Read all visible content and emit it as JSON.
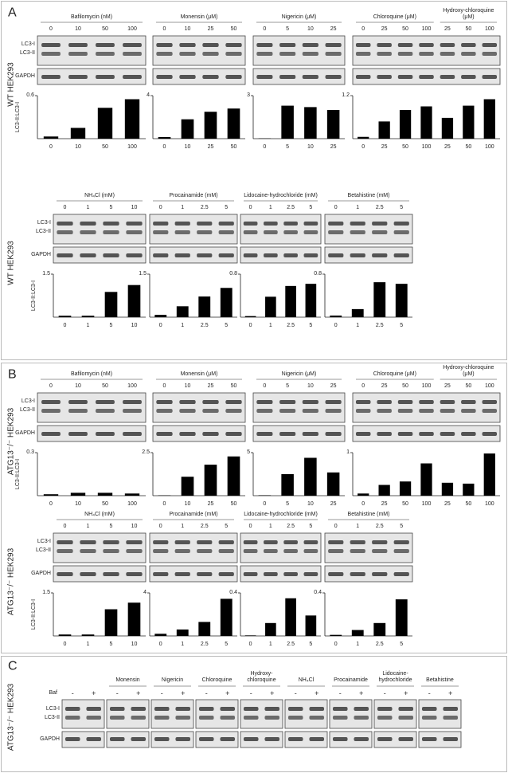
{
  "panel_letters": [
    "A",
    "B",
    "C"
  ],
  "blot_labels": [
    "LC3-I",
    "LC3-II",
    "GAPDH"
  ],
  "rows": [
    {
      "cell_line": "WT HEK293",
      "y_label": "LC3-II:LC3-I"
    },
    {
      "cell_line": "WT HEK293",
      "y_label": "LC3-II:LC3-I"
    },
    {
      "cell_line": "ATG13⁻/⁻ HEK293",
      "y_label": "LC3-II:LC3-I"
    },
    {
      "cell_line": "ATG13⁻/⁻ HEK293",
      "y_label": "LC3-II:LC3-I"
    }
  ],
  "chart_data": [
    {
      "type": "bar",
      "title": "Bafilomycin (nM)",
      "categories": [
        "0",
        "10",
        "50",
        "100"
      ],
      "values": [
        0.03,
        0.15,
        0.43,
        0.55
      ],
      "ylim": [
        0,
        0.6
      ],
      "yticks": [
        0.6
      ],
      "color": "#000000"
    },
    {
      "type": "bar",
      "title": "Monensin (μM)",
      "categories": [
        "0",
        "10",
        "25",
        "50"
      ],
      "values": [
        0.15,
        1.8,
        2.5,
        2.8
      ],
      "ylim": [
        0,
        4
      ],
      "yticks": [
        4
      ],
      "color": "#000000"
    },
    {
      "type": "bar",
      "title": "Nigericin (μM)",
      "categories": [
        "0",
        "5",
        "10",
        "25"
      ],
      "values": [
        0.02,
        2.3,
        2.2,
        2.0
      ],
      "ylim": [
        0,
        3
      ],
      "yticks": [
        3
      ],
      "color": "#000000"
    },
    {
      "type": "bar",
      "group_titles": [
        "Chloroquine (μM)",
        "Hydroxy-chloroquine (μM)"
      ],
      "categories": [
        "0",
        "25",
        "50",
        "100",
        "25",
        "50",
        "100"
      ],
      "values": [
        0.05,
        0.48,
        0.8,
        0.9,
        0.58,
        0.92,
        1.1
      ],
      "ylim": [
        0,
        1.2
      ],
      "yticks": [
        1.2
      ],
      "color": "#000000"
    },
    {
      "type": "bar",
      "title": "NH₄Cl (mM)",
      "categories": [
        "0",
        "1",
        "5",
        "10"
      ],
      "values": [
        0.05,
        0.05,
        0.88,
        1.12
      ],
      "ylim": [
        0,
        1.5
      ],
      "yticks": [
        1.5
      ],
      "color": "#000000"
    },
    {
      "type": "bar",
      "title": "Procainamide (mM)",
      "categories": [
        "0",
        "1",
        "2.5",
        "5"
      ],
      "values": [
        0.08,
        0.38,
        0.72,
        1.02
      ],
      "ylim": [
        0,
        1.5
      ],
      "yticks": [
        1.5
      ],
      "color": "#000000"
    },
    {
      "type": "bar",
      "title": "Lidocaine-hydrochloride (mM)",
      "categories": [
        "0",
        "1",
        "2.5",
        "5"
      ],
      "values": [
        0.02,
        0.38,
        0.58,
        0.62
      ],
      "ylim": [
        0,
        0.8
      ],
      "yticks": [
        0.8
      ],
      "color": "#000000"
    },
    {
      "type": "bar",
      "title": "Betahistine (mM)",
      "categories": [
        "0",
        "1",
        "2.5",
        "5"
      ],
      "values": [
        0.03,
        0.15,
        0.65,
        0.62
      ],
      "ylim": [
        0,
        0.8
      ],
      "yticks": [
        0.8
      ],
      "color": "#000000"
    },
    {
      "type": "bar",
      "title": "Bafilomycin (nM)",
      "categories": [
        "0",
        "10",
        "50",
        "100"
      ],
      "values": [
        0.01,
        0.02,
        0.02,
        0.015
      ],
      "ylim": [
        0,
        0.3
      ],
      "yticks": [
        0.3
      ],
      "color": "#000000"
    },
    {
      "type": "bar",
      "title": "Monensin (μM)",
      "categories": [
        "0",
        "10",
        "25",
        "50"
      ],
      "values": [
        0.02,
        1.1,
        1.8,
        2.28
      ],
      "ylim": [
        0,
        2.5
      ],
      "yticks": [
        2.5
      ],
      "color": "#000000"
    },
    {
      "type": "bar",
      "title": "Nigericin (μM)",
      "categories": [
        "0",
        "5",
        "10",
        "25"
      ],
      "values": [
        0.05,
        2.5,
        4.4,
        2.7
      ],
      "ylim": [
        0,
        5
      ],
      "yticks": [
        5
      ],
      "color": "#000000"
    },
    {
      "type": "bar",
      "group_titles": [
        "Chloroquine (μM)",
        "Hydroxy-chloroquine (μM)"
      ],
      "categories": [
        "0",
        "25",
        "50",
        "100",
        "25",
        "50",
        "100"
      ],
      "values": [
        0.05,
        0.25,
        0.33,
        0.75,
        0.3,
        0.28,
        0.98
      ],
      "ylim": [
        0,
        1
      ],
      "yticks": [
        1
      ],
      "color": "#000000"
    },
    {
      "type": "bar",
      "title": "NH₄Cl (mM)",
      "categories": [
        "0",
        "1",
        "5",
        "10"
      ],
      "values": [
        0.05,
        0.05,
        0.93,
        1.16
      ],
      "ylim": [
        0,
        1.5
      ],
      "yticks": [
        1.5
      ],
      "color": "#000000"
    },
    {
      "type": "bar",
      "title": "Procainamide (mM)",
      "categories": [
        "0",
        "1",
        "2.5",
        "5"
      ],
      "values": [
        0.2,
        0.6,
        1.3,
        3.45
      ],
      "ylim": [
        0,
        4
      ],
      "yticks": [
        4
      ],
      "color": "#000000"
    },
    {
      "type": "bar",
      "title": "Lidocaine-hydrochloride (mM)",
      "categories": [
        "0",
        "1",
        "2.5",
        "5"
      ],
      "values": [
        0.005,
        0.12,
        0.35,
        0.19
      ],
      "ylim": [
        0,
        0.4
      ],
      "yticks": [
        0.4
      ],
      "color": "#000000"
    },
    {
      "type": "bar",
      "title": "Betahistine (mM)",
      "categories": [
        "0",
        "1",
        "2.5",
        "5"
      ],
      "values": [
        0.01,
        0.055,
        0.12,
        0.34
      ],
      "ylim": [
        0,
        0.4
      ],
      "yticks": [
        0.4
      ],
      "color": "#000000"
    }
  ],
  "panel_c": {
    "cell_line": "ATG13⁻/⁻ HEK293",
    "row_label": "Baf",
    "lanes": [
      "-",
      "+"
    ],
    "groups": [
      null,
      "Monensin",
      "Nigericin",
      "Chloroquine",
      "Hydroxy-chloroquine",
      "NH₄Cl",
      "Procainamide",
      "Lidocaine-hydrochloride",
      "Betahistine"
    ]
  }
}
